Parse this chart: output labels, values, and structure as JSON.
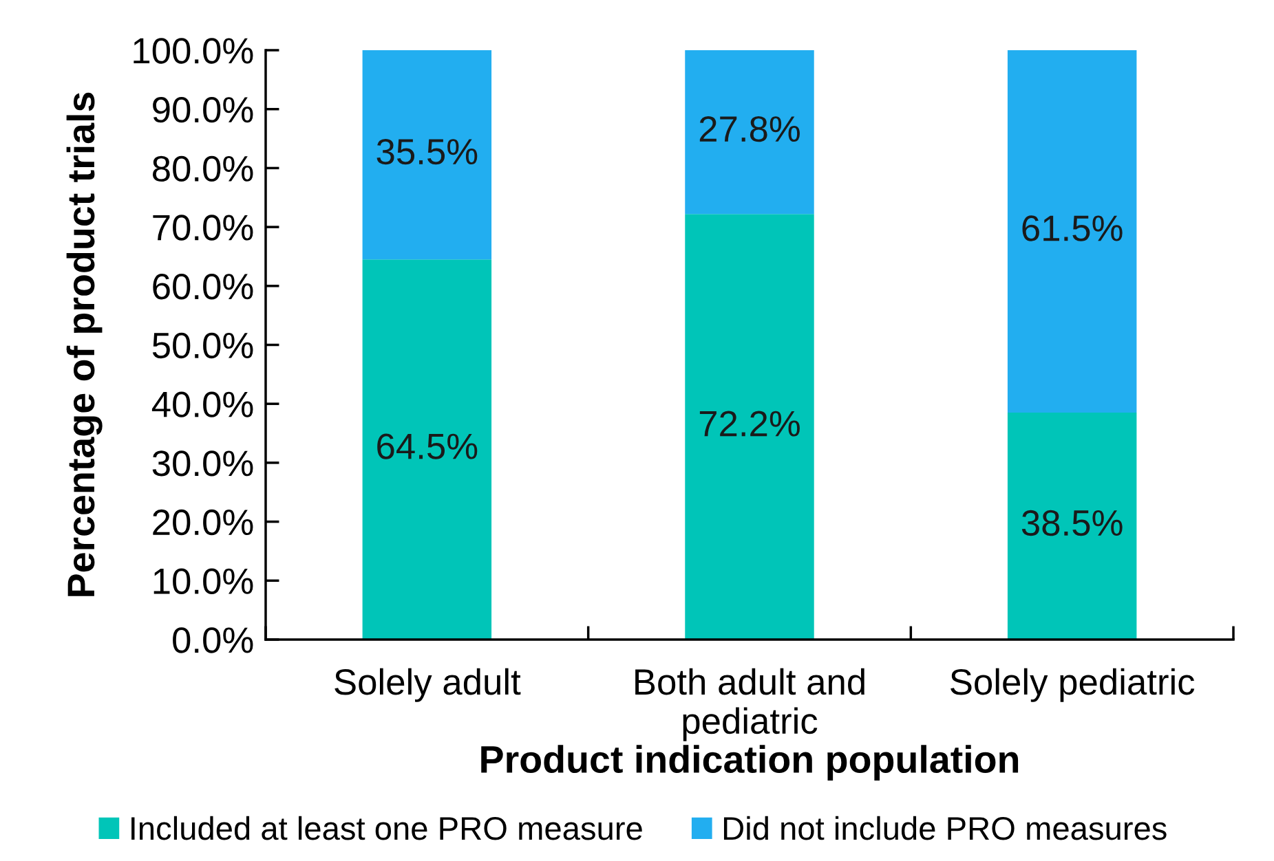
{
  "chart_data": {
    "type": "bar",
    "stacked": true,
    "xlabel": "Product indication population",
    "ylabel": "Percentage of product trials",
    "categories": [
      "Solely adult",
      "Both adult and\npediatric",
      "Solely pediatric"
    ],
    "series": [
      {
        "name": "Included at least one PRO measure",
        "color": "#00c5b8",
        "values": [
          64.5,
          72.2,
          38.5
        ],
        "value_labels": [
          "64.5%",
          "72.2%",
          "38.5%"
        ]
      },
      {
        "name": "Did not include PRO measures",
        "color": "#22aef0",
        "values": [
          35.5,
          27.8,
          61.5
        ],
        "value_labels": [
          "35.5%",
          "27.8%",
          "61.5%"
        ]
      }
    ],
    "ylim": [
      0,
      100
    ],
    "yticks": [
      {
        "value": 0,
        "label": "0.0%"
      },
      {
        "value": 10,
        "label": "10.0%"
      },
      {
        "value": 20,
        "label": "20.0%"
      },
      {
        "value": 30,
        "label": "30.0%"
      },
      {
        "value": 40,
        "label": "40.0%"
      },
      {
        "value": 50,
        "label": "50.0%"
      },
      {
        "value": 60,
        "label": "60.0%"
      },
      {
        "value": 70,
        "label": "70.0%"
      },
      {
        "value": 80,
        "label": "80.0%"
      },
      {
        "value": 90,
        "label": "90.0%"
      },
      {
        "value": 100,
        "label": "100.0%"
      }
    ],
    "grid": false,
    "legend": "bottom"
  }
}
